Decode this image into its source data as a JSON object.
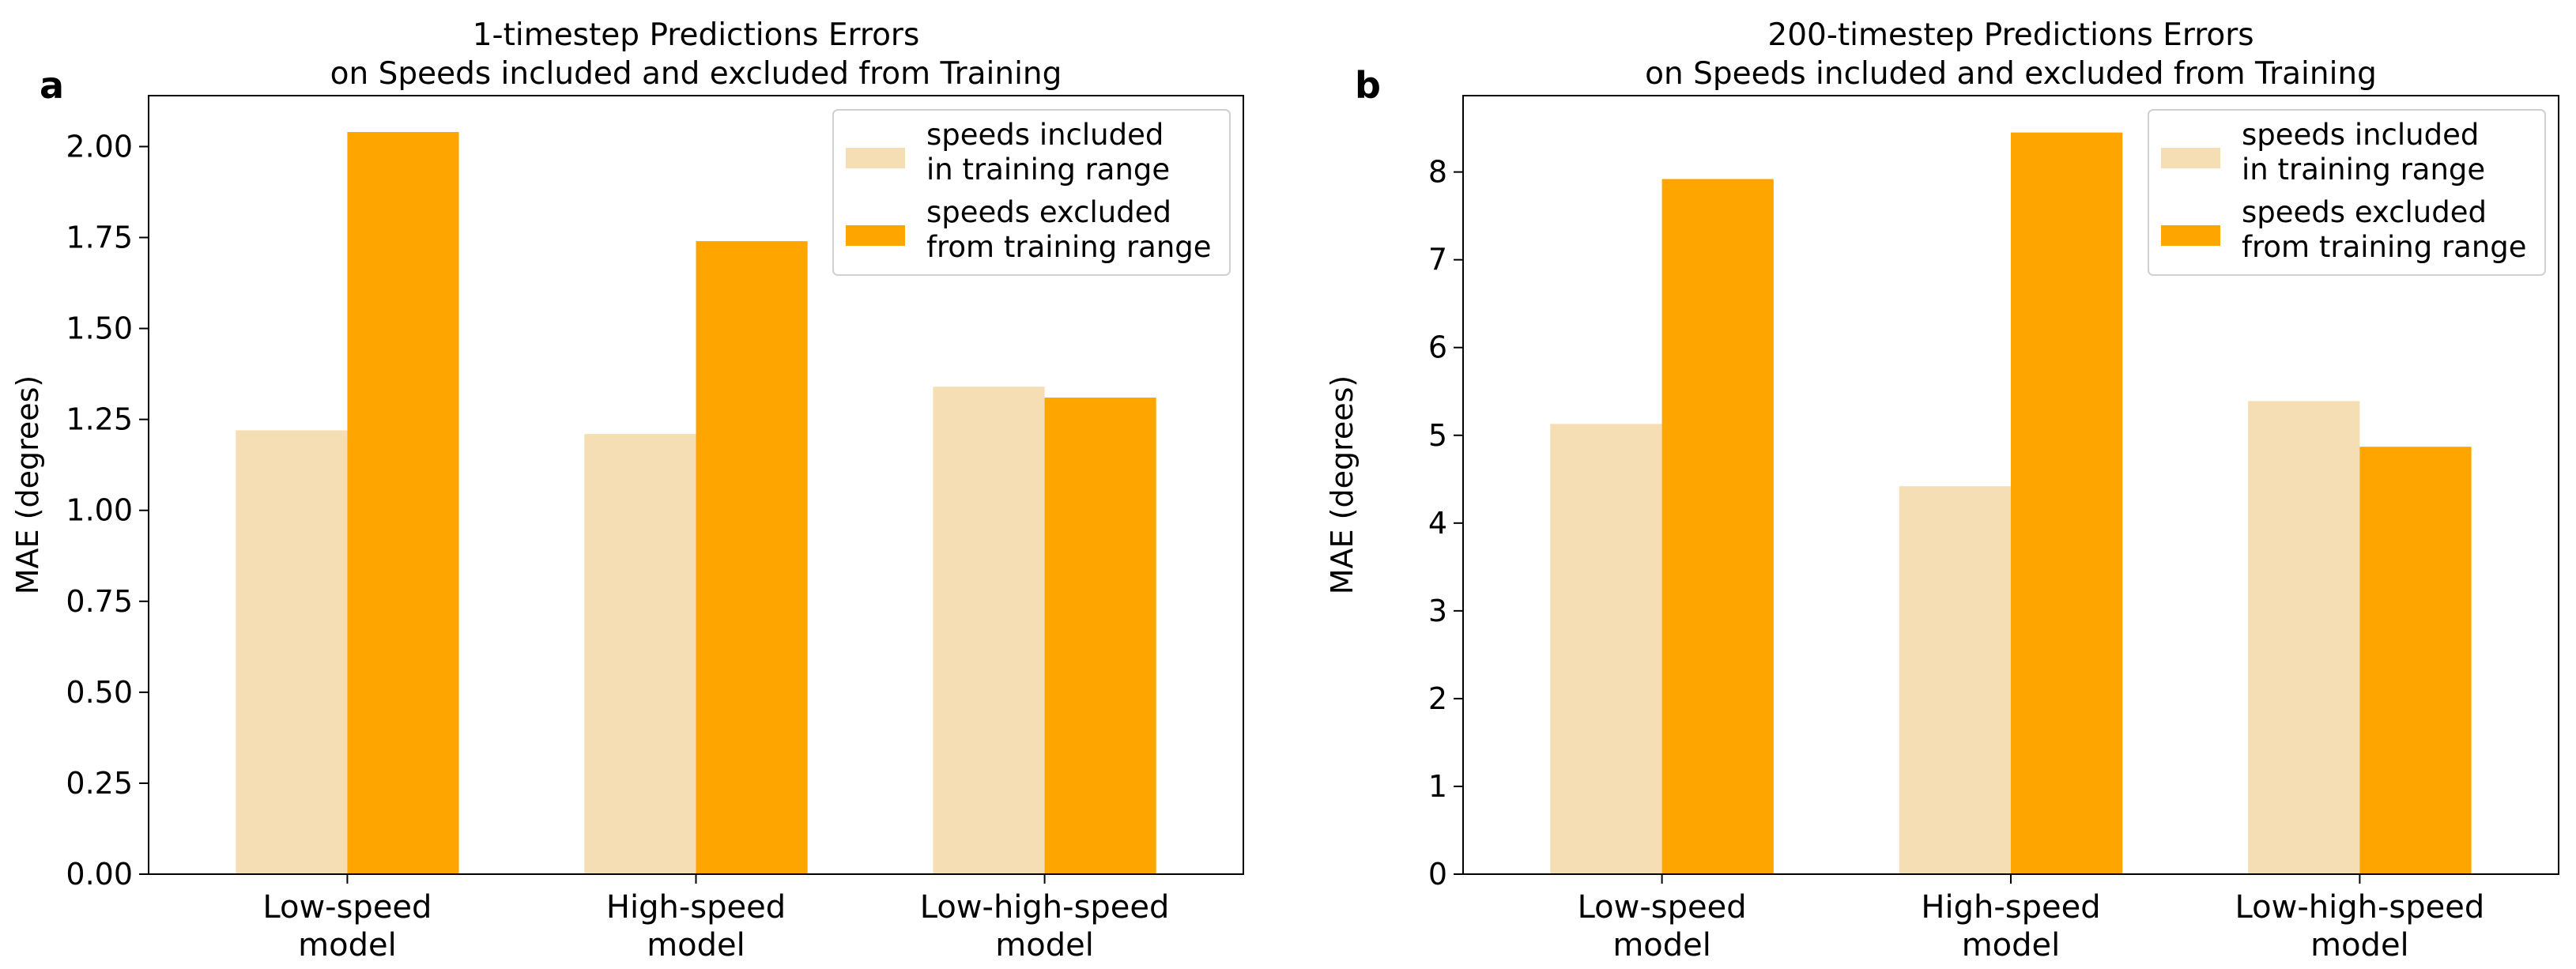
{
  "chart_data": [
    {
      "panel": "a",
      "type": "bar",
      "title_lines": [
        "1-timestep Predictions Errors",
        "on Speeds included and excluded from Training"
      ],
      "xlabel": "",
      "ylabel": "MAE (degrees)",
      "categories": [
        [
          "Low-speed",
          "model"
        ],
        [
          "High-speed",
          "model"
        ],
        [
          "Low-high-speed",
          "model"
        ]
      ],
      "ylim": [
        0,
        2.14
      ],
      "yticks": [
        0.0,
        0.25,
        0.5,
        0.75,
        1.0,
        1.25,
        1.5,
        1.75,
        2.0
      ],
      "ytick_labels": [
        "0.00",
        "0.25",
        "0.50",
        "0.75",
        "1.00",
        "1.25",
        "1.50",
        "1.75",
        "2.00"
      ],
      "series": [
        {
          "name": "speeds included in training range",
          "legend_lines": [
            "speeds included",
            "in training range"
          ],
          "color": "#F5DEB3",
          "values": [
            1.22,
            1.21,
            1.34
          ]
        },
        {
          "name": "speeds excluded from training range",
          "legend_lines": [
            "speeds excluded",
            "from training range"
          ],
          "color": "#FFA500",
          "values": [
            2.04,
            1.74,
            1.31
          ]
        }
      ],
      "legend_position": "top-right"
    },
    {
      "panel": "b",
      "type": "bar",
      "title_lines": [
        "200-timestep Predictions Errors",
        "on Speeds included and excluded from Training"
      ],
      "xlabel": "",
      "ylabel": "MAE (degrees)",
      "categories": [
        [
          "Low-speed",
          "model"
        ],
        [
          "High-speed",
          "model"
        ],
        [
          "Low-high-speed",
          "model"
        ]
      ],
      "ylim": [
        0,
        8.87
      ],
      "yticks": [
        0,
        1,
        2,
        3,
        4,
        5,
        6,
        7,
        8
      ],
      "ytick_labels": [
        "0",
        "1",
        "2",
        "3",
        "4",
        "5",
        "6",
        "7",
        "8"
      ],
      "series": [
        {
          "name": "speeds included in training range",
          "legend_lines": [
            "speeds included",
            "in training range"
          ],
          "color": "#F5DEB3",
          "values": [
            5.13,
            4.42,
            5.39
          ]
        },
        {
          "name": "speeds excluded from training range",
          "legend_lines": [
            "speeds excluded",
            "from training range"
          ],
          "color": "#FFA500",
          "values": [
            7.92,
            8.45,
            4.87
          ]
        }
      ],
      "legend_position": "top-right"
    }
  ]
}
